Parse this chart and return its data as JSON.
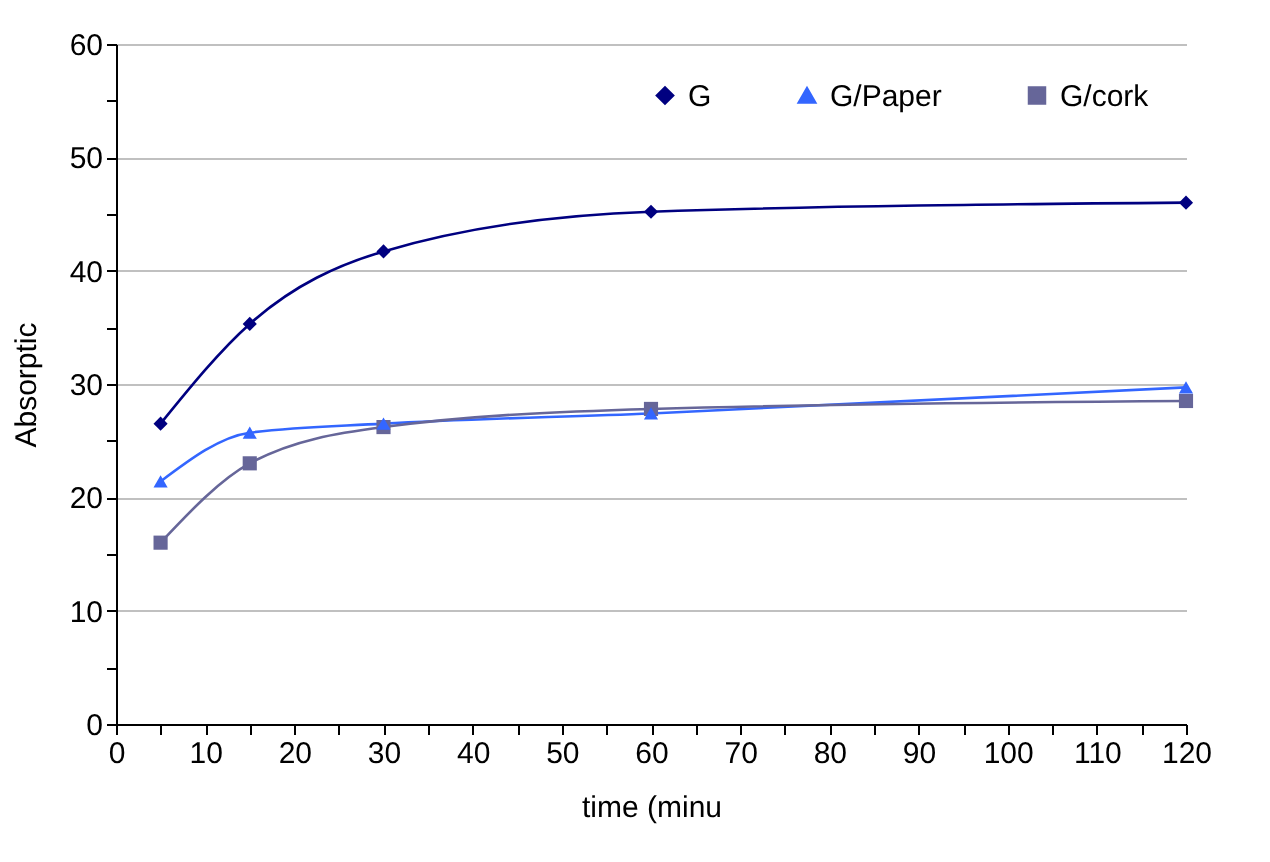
{
  "chart_data": {
    "type": "line",
    "xlabel": "time (minu",
    "ylabel": "Absorptic",
    "x": [
      5,
      15,
      30,
      60,
      120
    ],
    "series": [
      {
        "name": "G",
        "color": "#000080",
        "marker": "diamond",
        "values": [
          26.5,
          35.3,
          41.7,
          45.2,
          46.0
        ]
      },
      {
        "name": "G/Paper",
        "color": "#3366ff",
        "marker": "triangle",
        "values": [
          21.4,
          25.7,
          26.5,
          27.4,
          29.7
        ]
      },
      {
        "name": "G/cork",
        "color": "#666699",
        "marker": "square",
        "values": [
          16.0,
          23.0,
          26.2,
          27.8,
          28.5
        ]
      }
    ],
    "xlim": [
      0,
      120
    ],
    "ylim": [
      0,
      60
    ],
    "xticks": [
      0,
      {
        "value": 5,
        "label": null
      },
      10,
      {
        "value": 15,
        "label": null
      },
      20,
      {
        "value": 25,
        "label": null
      },
      30,
      {
        "value": 35,
        "label": null
      },
      40,
      {
        "value": 45,
        "label": null
      },
      50,
      {
        "value": 55,
        "label": null
      },
      60,
      {
        "value": 65,
        "label": null
      },
      70,
      {
        "value": 75,
        "label": null
      },
      80,
      {
        "value": 85,
        "label": null
      },
      90,
      {
        "value": 95,
        "label": null
      },
      100,
      {
        "value": 105,
        "label": null
      },
      110,
      {
        "value": 115,
        "label": null
      },
      120
    ],
    "yticks": [
      0,
      {
        "value": 5,
        "label": null
      },
      10,
      {
        "value": 15,
        "label": null
      },
      20,
      {
        "value": 25,
        "label": null
      },
      30,
      {
        "value": 35,
        "label": null
      },
      40,
      {
        "value": 45,
        "label": null
      },
      50,
      {
        "value": 55,
        "label": null
      },
      60
    ],
    "grid": "y",
    "legend": "top right",
    "line_style": "solid"
  }
}
